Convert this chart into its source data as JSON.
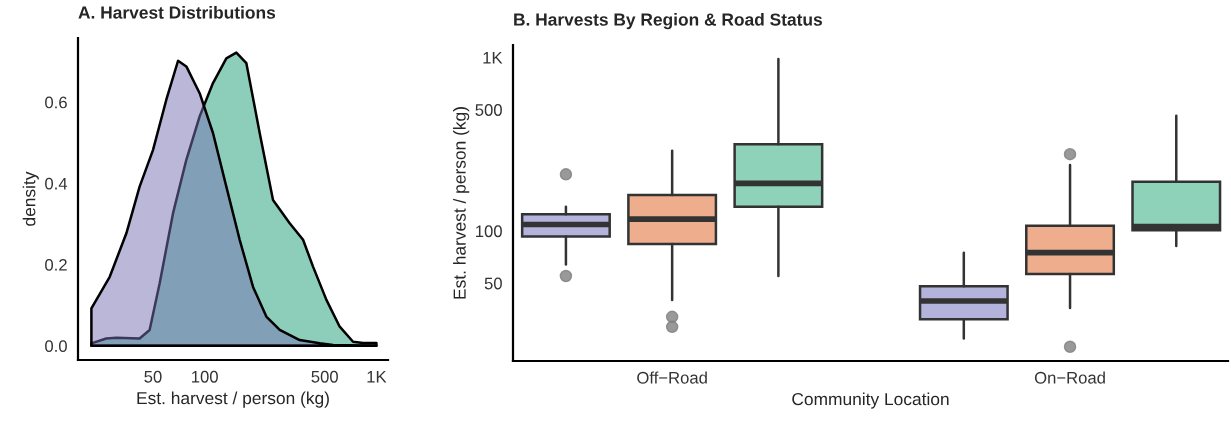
{
  "chart_data": [
    {
      "type": "area",
      "title": "A. Harvest Distributions",
      "xlabel": "Est. harvest / person (kg)",
      "ylabel": "density",
      "log": "x",
      "grid": false,
      "legend": false,
      "xlim": [
        18.3,
        1168
      ],
      "xticks": [
        50,
        100,
        500,
        {
          "value": 1000,
          "label": "1K"
        }
      ],
      "ylim": [
        -0.035,
        0.758
      ],
      "yticks": [
        {
          "value": 0,
          "label": "0.0"
        },
        {
          "value": 0.2,
          "label": "0.2"
        },
        {
          "value": 0.4,
          "label": "0.4"
        },
        {
          "value": 0.6,
          "label": "0.6"
        }
      ],
      "series": [
        {
          "color": "#1b9e77",
          "x": [
            21.9,
            26.7,
            30.6,
            41.8,
            47.8,
            54.7,
            65.4,
            78.2,
            93.5,
            111.8,
            133.7,
            152.9,
            174.9,
            209.1,
            250.0,
            312.6,
            374.0,
            427.5,
            511.5,
            611.4,
            731.3,
            836.2,
            1000
          ],
          "values": [
            0.006,
            0.018,
            0.02,
            0.018,
            0.039,
            0.154,
            0.326,
            0.458,
            0.565,
            0.647,
            0.708,
            0.722,
            0.696,
            0.524,
            0.359,
            0.302,
            0.261,
            0.195,
            0.113,
            0.047,
            0.01,
            0.007,
            0.007
          ]
        },
        {
          "color": "#7570b3",
          "x": [
            21.9,
            28.0,
            35.0,
            41.8,
            50.0,
            59.8,
            70.0,
            78.2,
            93.5,
            111.8,
            133.7,
            159.9,
            191.3,
            228.6,
            273.5,
            357.5,
            467.7,
            559.5,
            1000
          ],
          "values": [
            0.092,
            0.17,
            0.277,
            0.392,
            0.482,
            0.606,
            0.702,
            0.688,
            0.622,
            0.524,
            0.392,
            0.261,
            0.145,
            0.072,
            0.039,
            0.014,
            0.006,
            0.002,
            0
          ]
        }
      ]
    },
    {
      "type": "box",
      "title": "B. Harvests By Region & Road Status",
      "xlabel": "Community Location",
      "ylabel": "Est. harvest / person (kg)",
      "log": "y",
      "grid": false,
      "legend": false,
      "categories": [
        "Off−Road",
        "On−Road"
      ],
      "ylim": [
        17.8,
        1180
      ],
      "yticks": [
        50,
        100,
        500,
        {
          "value": 1000,
          "label": "1K"
        }
      ],
      "series": [
        {
          "color": "#b4b3dc",
          "boxes": [
            {
              "low": 64,
              "q1": 93,
              "median": 109,
              "q3": 125,
              "high": 138,
              "outliers": [
                212,
                55
              ]
            },
            {
              "low": 24,
              "q1": 31,
              "median": 39.5,
              "q3": 48,
              "high": 75
            }
          ]
        },
        {
          "color": "#eeae8e",
          "boxes": [
            {
              "low": 40,
              "q1": 84,
              "median": 117,
              "q3": 161,
              "high": 290,
              "outliers": [
                32,
                28
              ]
            },
            {
              "low": 36,
              "q1": 56.5,
              "median": 75,
              "q3": 107,
              "high": 240,
              "outliers": [
                277,
                21.5
              ]
            }
          ]
        },
        {
          "color": "#8fd2ba",
          "boxes": [
            {
              "low": 55,
              "q1": 138,
              "median": 188,
              "q3": 316,
              "high": 980
            },
            {
              "low": 82,
              "q1": 101,
              "median": 106,
              "q3": 192,
              "high": 461
            }
          ]
        }
      ]
    }
  ]
}
